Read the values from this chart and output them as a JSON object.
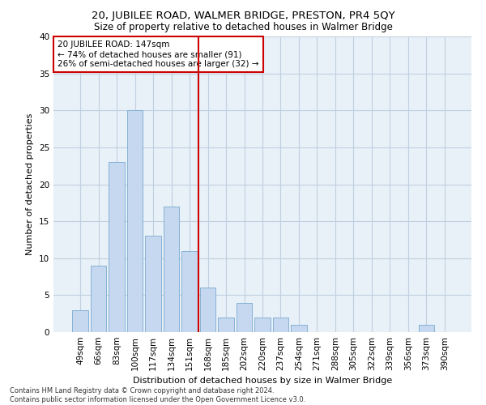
{
  "title": "20, JUBILEE ROAD, WALMER BRIDGE, PRESTON, PR4 5QY",
  "subtitle": "Size of property relative to detached houses in Walmer Bridge",
  "xlabel": "Distribution of detached houses by size in Walmer Bridge",
  "ylabel": "Number of detached properties",
  "footer_line1": "Contains HM Land Registry data © Crown copyright and database right 2024.",
  "footer_line2": "Contains public sector information licensed under the Open Government Licence v3.0.",
  "bar_labels": [
    "49sqm",
    "66sqm",
    "83sqm",
    "100sqm",
    "117sqm",
    "134sqm",
    "151sqm",
    "168sqm",
    "185sqm",
    "202sqm",
    "220sqm",
    "237sqm",
    "254sqm",
    "271sqm",
    "288sqm",
    "305sqm",
    "322sqm",
    "339sqm",
    "356sqm",
    "373sqm",
    "390sqm"
  ],
  "bar_values": [
    3,
    9,
    23,
    30,
    13,
    17,
    11,
    6,
    2,
    4,
    2,
    2,
    1,
    0,
    0,
    0,
    0,
    0,
    0,
    1,
    0
  ],
  "bar_color": "#c5d8f0",
  "bar_edge_color": "#7aaacf",
  "grid_color": "#c0d0e0",
  "background_color": "#e8f0f8",
  "annotation_text": "20 JUBILEE ROAD: 147sqm\n← 74% of detached houses are smaller (91)\n26% of semi-detached houses are larger (32) →",
  "vline_x": 6.5,
  "vline_color": "#cc0000",
  "annotation_box_facecolor": "#ffffff",
  "annotation_box_edgecolor": "#cc0000",
  "ylim": [
    0,
    40
  ],
  "yticks": [
    0,
    5,
    10,
    15,
    20,
    25,
    30,
    35,
    40
  ],
  "title_fontsize": 9.5,
  "subtitle_fontsize": 8.5,
  "xlabel_fontsize": 8,
  "ylabel_fontsize": 8,
  "tick_fontsize": 7.5,
  "footer_fontsize": 6,
  "annotation_fontsize": 7.5
}
